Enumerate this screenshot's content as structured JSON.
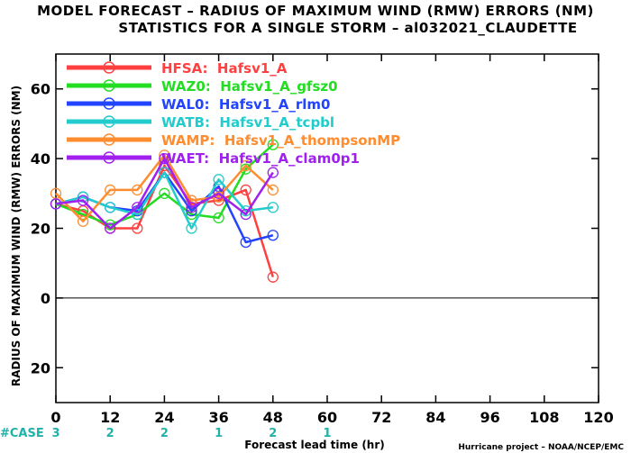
{
  "title_line1": "MODEL FORECAST – RADIUS OF MAXIMUM WIND (RMW) ERRORS (NM)",
  "title_line2": "STATISTICS FOR A SINGLE STORM – al032021_CLAUDETTE",
  "credit": "Hurricane project – NOAA/NCEP/EMC",
  "case_label": "#CASE",
  "case_counts": [
    {
      "x": 0,
      "label": "3"
    },
    {
      "x": 12,
      "label": "2"
    },
    {
      "x": 24,
      "label": "2"
    },
    {
      "x": 36,
      "label": "1"
    },
    {
      "x": 48,
      "label": "2"
    },
    {
      "x": 60,
      "label": "1"
    }
  ],
  "chart_data": {
    "type": "line",
    "xlabel": "Forecast lead time (hr)",
    "ylabel": "RADIUS OF MAXIMUM WIND (RMW) ERRORS (NM)",
    "xlim": [
      0,
      120
    ],
    "ylim": [
      -30,
      70
    ],
    "xticks": [
      0,
      12,
      24,
      36,
      48,
      60,
      72,
      84,
      96,
      108,
      120
    ],
    "yticks": [
      -20,
      0,
      20,
      40,
      60
    ],
    "ytick_labels": [
      "20",
      "0",
      "20",
      "40",
      "60"
    ],
    "zero_line": true,
    "grid": false,
    "legend_position": "top-left",
    "x": [
      0,
      6,
      12,
      18,
      24,
      30,
      36,
      42,
      48
    ],
    "series": [
      {
        "name": "HFSA:  Hafsv1_A",
        "color": "#ff4040",
        "values": [
          27,
          25,
          20,
          20,
          38,
          27,
          28,
          31,
          6
        ]
      },
      {
        "name": "WAZ0:  Hafsv1_A_gfsz0",
        "color": "#22dd22",
        "values": [
          27,
          24,
          21,
          24,
          30,
          24,
          23,
          37,
          44
        ]
      },
      {
        "name": "WAL0:  Hafsv1_A_rlm0",
        "color": "#2244ff",
        "values": [
          27,
          29,
          26,
          25,
          36,
          25,
          32,
          16,
          18
        ]
      },
      {
        "name": "WATB:  Hafsv1_A_tcpbl",
        "color": "#22cccc",
        "values": [
          27,
          29,
          26,
          24,
          36,
          20,
          34,
          25,
          26
        ]
      },
      {
        "name": "WAMP:  Hafsv1_A_thompsonMP",
        "color": "#ff8c2e",
        "values": [
          30,
          22,
          31,
          31,
          41,
          28,
          29,
          38,
          31
        ]
      },
      {
        "name": "WAET:  Hafsv1_A_clam0p1",
        "color": "#a020f0",
        "values": [
          27,
          28,
          20,
          26,
          40,
          26,
          30,
          24,
          36
        ]
      }
    ]
  }
}
